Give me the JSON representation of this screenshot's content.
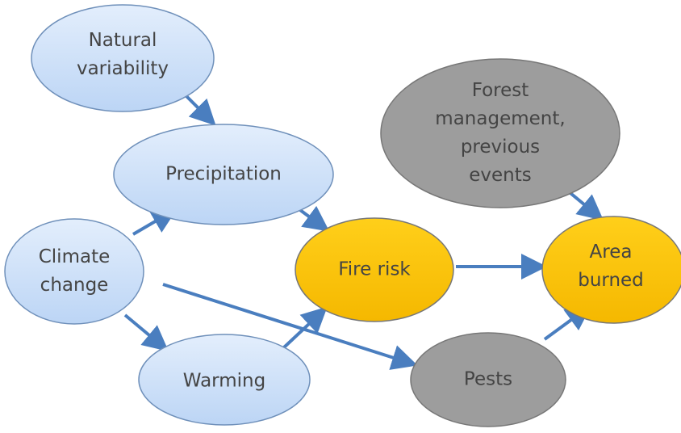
{
  "nodes": [
    {
      "label": [
        "Natural",
        "variability"
      ]
    },
    {
      "label": [
        "Precipitation"
      ]
    },
    {
      "label": [
        "Climate",
        "change"
      ]
    },
    {
      "label": [
        "Warming"
      ]
    },
    {
      "label": [
        "Fire risk"
      ]
    },
    {
      "label": [
        "Forest",
        "management,",
        "previous",
        "events"
      ]
    },
    {
      "label": [
        "Area",
        "burned"
      ]
    },
    {
      "label": [
        "Pests"
      ]
    }
  ]
}
